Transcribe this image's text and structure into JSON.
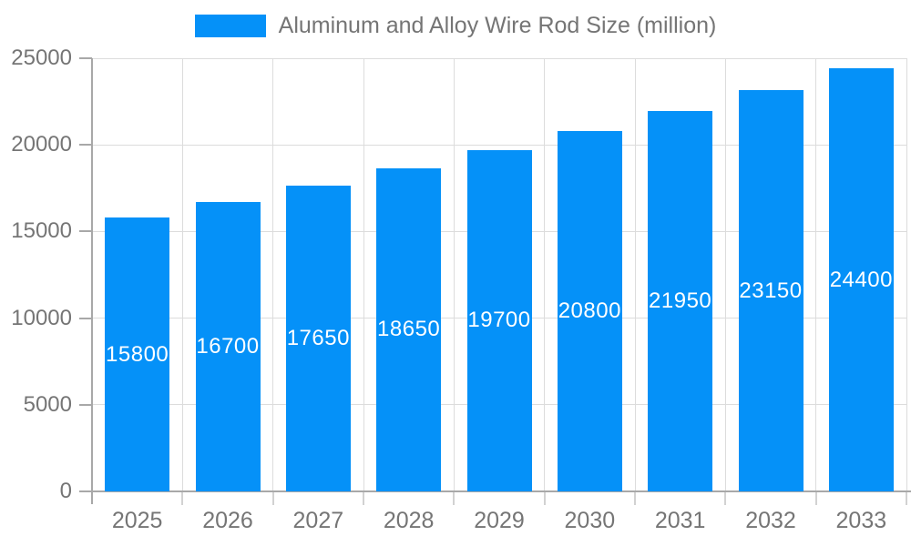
{
  "legend": {
    "label": "Aluminum and Alloy Wire Rod Size (million)"
  },
  "chart_data": {
    "type": "bar",
    "title": "Aluminum and Alloy Wire Rod Size (million)",
    "categories": [
      "2025",
      "2026",
      "2027",
      "2028",
      "2029",
      "2030",
      "2031",
      "2032",
      "2033"
    ],
    "values": [
      15800,
      16700,
      17650,
      18650,
      19700,
      20800,
      21950,
      23150,
      24400
    ],
    "bar_labels": [
      "15800",
      "16700",
      "17650",
      "18650",
      "19700",
      "20800",
      "21950",
      "23150",
      "24400"
    ],
    "xlabel": "",
    "ylabel": "",
    "ylim": [
      0,
      25000
    ],
    "yticks": [
      0,
      5000,
      10000,
      15000,
      20000,
      25000
    ],
    "grid": true,
    "legend_position": "top",
    "colors": {
      "bar": "#0591f8",
      "bar_label_text": "#ffffff",
      "axis_text": "#757575",
      "axis_line": "#a8a8a8",
      "gridline": "#dcdcdc",
      "x_tick": "#d2d2d2",
      "background": "#ffffff"
    }
  }
}
